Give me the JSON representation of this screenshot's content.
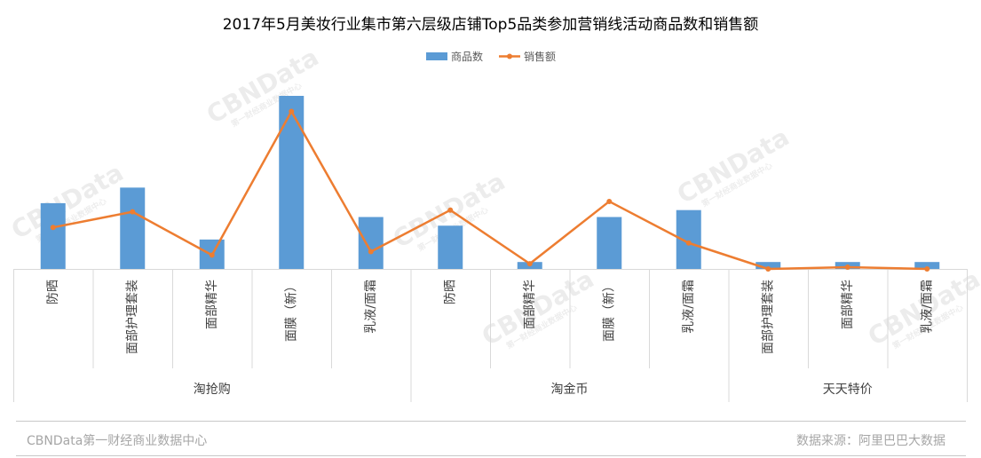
{
  "chart_data": {
    "type": "bar+line",
    "title": "2017年5月美妆行业集市第六层级店铺Top5品类参加营销线活动商品数和销售额",
    "legend": {
      "position": "top",
      "entries": [
        "商品数",
        "销售额"
      ]
    },
    "groups": [
      {
        "name": "淘抢购",
        "categories": [
          "防晒",
          "面部护理套装",
          "面部精华",
          "面膜（新）",
          "乳液/面霜"
        ]
      },
      {
        "name": "淘金币",
        "categories": [
          "防晒",
          "面部精华",
          "面膜（新）",
          "乳液/面霜"
        ]
      },
      {
        "name": "天天特价",
        "categories": [
          "面部护理套装",
          "面部精华",
          "乳液/面霜"
        ]
      }
    ],
    "series": [
      {
        "name": "商品数",
        "type": "bar",
        "values": [
          38,
          47,
          17,
          100,
          30,
          25,
          4,
          30,
          34,
          4,
          4,
          4
        ]
      },
      {
        "name": "销售额",
        "type": "line",
        "values": [
          24,
          33,
          8,
          91,
          10,
          34,
          3,
          39,
          15,
          0,
          1,
          0
        ]
      }
    ],
    "ylim": [
      0,
      100
    ],
    "grid": false,
    "colors": {
      "bar": "#5b9bd5",
      "line": "#ed7d31",
      "axis": "#d9d9d9"
    }
  },
  "watermark": {
    "brand": "CBNData",
    "sub": "第一财经商业数据中心"
  },
  "footer": {
    "left": "CBNData第一财经商业数据中心",
    "right": "数据来源：阿里巴巴大数据"
  }
}
